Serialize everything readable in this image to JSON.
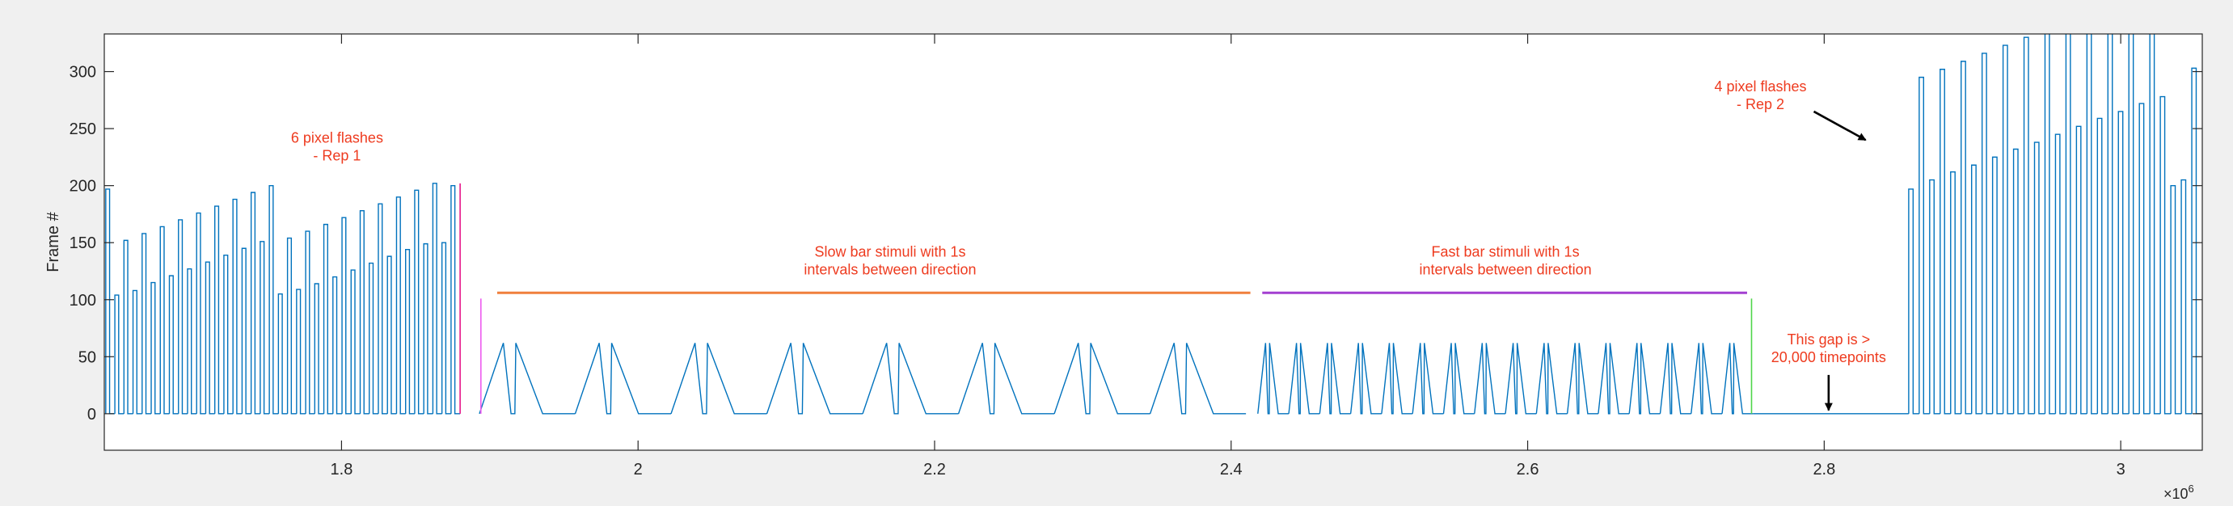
{
  "chart_data": {
    "type": "line",
    "title": "",
    "xlabel": "",
    "ylabel": "Frame #",
    "x_exponent_label": "×10",
    "x_exponent_power": "6",
    "xlim": [
      1640000,
      3055000
    ],
    "ylim": [
      -32,
      333
    ],
    "grid": false,
    "x_ticks": [
      1.8,
      2,
      2.2,
      2.4,
      2.6,
      2.8,
      3
    ],
    "x_tick_labels": [
      "1.8",
      "2",
      "2.2",
      "2.4",
      "2.6",
      "2.8",
      "3"
    ],
    "y_ticks": [
      0,
      50,
      100,
      150,
      200,
      250,
      300
    ],
    "y_tick_labels": [
      "0",
      "50",
      "100",
      "150",
      "200",
      "250",
      "300"
    ],
    "colors": {
      "signal": "#0072bd",
      "annotation_text": "#ee3b1f",
      "slow_bar_line": "#f07f3c",
      "fast_bar_line": "#a33fd1",
      "rep1_marker": "#e6168a",
      "slow_start_marker": "#ee5cf0",
      "fast_end_marker": "#4fd64a",
      "arrow": "#000000"
    },
    "series": [
      {
        "segments": [
          {
            "label": "6 pixel flashes - Rep 1",
            "type": "flash_pulses",
            "x_start": 1641000,
            "x_end": 1880000,
            "count": 39,
            "peak_values": [
              197,
              104,
              152,
              108,
              158,
              115,
              164,
              121,
              170,
              127,
              176,
              133,
              182,
              139,
              188,
              145,
              194,
              151,
              200,
              105,
              154,
              109,
              160,
              114,
              166,
              120,
              172,
              126,
              178,
              132,
              184,
              138,
              190,
              144,
              196,
              149,
              202,
              150,
              200
            ]
          },
          {
            "label": "Slow bar stimuli with 1s intervals between direction",
            "type": "bar_sweeps",
            "x_start": 1893000,
            "x_end": 2410000,
            "cycles": 8,
            "peak_value": 62
          },
          {
            "label": "Fast bar stimuli with 1s intervals between direction",
            "type": "bar_sweeps",
            "x_start": 2418000,
            "x_end": 2752000,
            "cycles": 16,
            "peak_value": 62
          },
          {
            "label": "This gap is > 20,000 timepoints",
            "type": "flat",
            "x_start": 2752000,
            "x_end": 2857000,
            "value": 0
          },
          {
            "label": "4 pixel flashes - Rep 2",
            "type": "flash_pulses",
            "x_start": 2857000,
            "x_end": 3055000,
            "count": 28,
            "peak_values": [
              197,
              295,
              205,
              302,
              212,
              309,
              218,
              316,
              225,
              323,
              232,
              330,
              238,
              337,
              245,
              344,
              252,
              351,
              259,
              358,
              265,
              365,
              272,
              372,
              278,
              200,
              205,
              303
            ]
          }
        ]
      }
    ],
    "annotations": [
      {
        "lines": [
          "6 pixel flashes",
          "- Rep 1"
        ],
        "x": 1797000,
        "y": 232
      },
      {
        "lines": [
          "Slow bar stimuli with 1s",
          "intervals between direction"
        ],
        "x": 2170000,
        "y": 132
      },
      {
        "lines": [
          "Fast bar stimuli with 1s",
          "intervals between direction"
        ],
        "x": 2585000,
        "y": 132
      },
      {
        "lines": [
          "This gap is >",
          "20,000 timepoints"
        ],
        "x": 2803000,
        "y": 55
      },
      {
        "lines": [
          "4 pixel flashes",
          "- Rep 2"
        ],
        "x": 2757000,
        "y": 277
      }
    ],
    "interval_lines": [
      {
        "name": "slow",
        "x_start": 1905000,
        "x_end": 2413000,
        "y": 106
      },
      {
        "name": "fast",
        "x_start": 2421000,
        "x_end": 2748000,
        "y": 106
      }
    ],
    "markers": [
      {
        "name": "rep1-end-marker",
        "x": 1880000,
        "y_from": 0,
        "y_to": 202,
        "color_key": "rep1_marker"
      },
      {
        "name": "slow-start-marker",
        "x": 1894000,
        "y_from": 0,
        "y_to": 101,
        "color_key": "slow_start_marker"
      },
      {
        "name": "fast-end-marker",
        "x": 2751000,
        "y_from": 0,
        "y_to": 101,
        "color_key": "fast_end_marker"
      }
    ],
    "arrows": [
      {
        "name": "gap-arrow",
        "x1": 2803000,
        "y1": 34,
        "x2": 2803000,
        "y2": 3
      },
      {
        "name": "rep2-arrow",
        "x1": 2793000,
        "y1": 265,
        "x2": 2828000,
        "y2": 240
      }
    ]
  }
}
